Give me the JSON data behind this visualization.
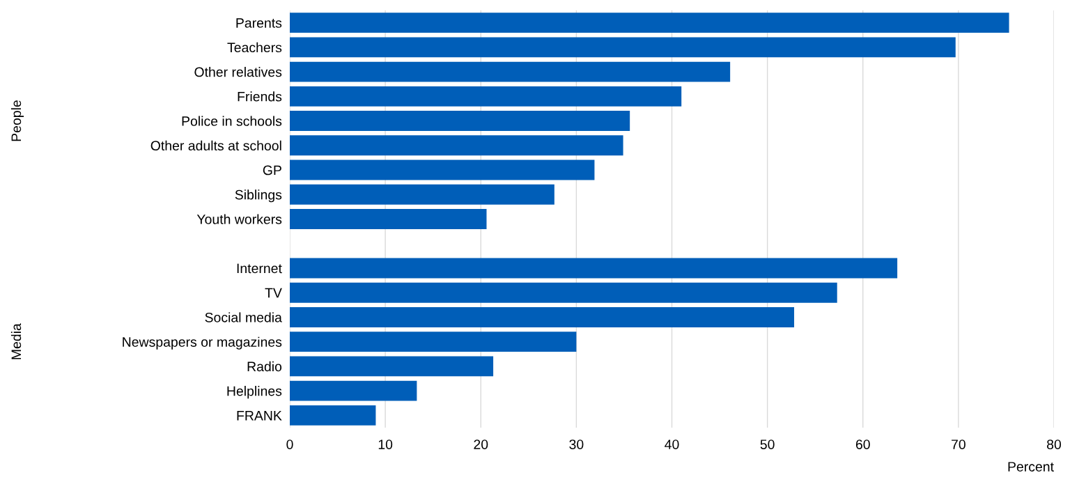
{
  "chart_data": {
    "type": "bar",
    "orientation": "horizontal",
    "xlabel": "Percent",
    "categories": [
      "Parents",
      "Teachers",
      "Other relatives",
      "Friends",
      "Police in schools",
      "Other adults at school",
      "GP",
      "Siblings",
      "Youth workers",
      null,
      "Internet",
      "TV",
      "Social media",
      "Newspapers or magazines",
      "Radio",
      "Helplines",
      "FRANK"
    ],
    "values": [
      75.3,
      69.7,
      46.1,
      41.0,
      35.6,
      34.9,
      31.9,
      27.7,
      20.6,
      null,
      63.6,
      57.3,
      52.8,
      30.0,
      21.3,
      13.3,
      9.0
    ],
    "color": "#005eb8",
    "annotations": [
      "People",
      "Media"
    ],
    "xlim": [
      0,
      80
    ],
    "xticks": [
      0,
      10,
      20,
      30,
      40,
      50,
      60,
      70,
      80
    ],
    "grid": "x",
    "legend": false
  }
}
